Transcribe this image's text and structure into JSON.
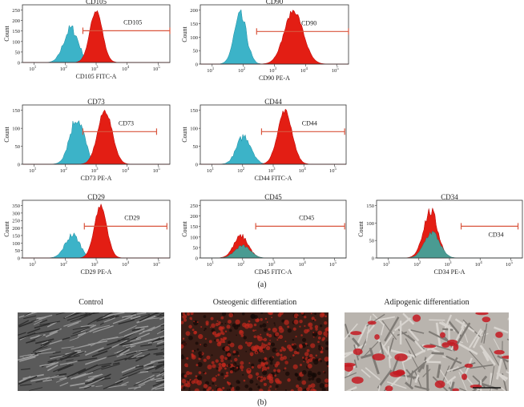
{
  "panel_a": {
    "label": "(a)",
    "plots": [
      {
        "title": "CD105",
        "x_label": "CD105 FITC-A",
        "y_label": "Count",
        "y_ticks": [
          0,
          50,
          100,
          150,
          200,
          250
        ],
        "gate": "CD105"
      },
      {
        "title": "CD90",
        "x_label": "CD90 PE-A",
        "y_label": "Count",
        "y_ticks": [
          0,
          50,
          100,
          150,
          200
        ],
        "gate": "CD90"
      },
      {
        "title": "CD73",
        "x_label": "CD73 PE-A",
        "y_label": "Count",
        "y_ticks": [
          0,
          50,
          100,
          150
        ],
        "gate": "CD73"
      },
      {
        "title": "CD44",
        "x_label": "CD44 FITC-A",
        "y_label": "Count",
        "y_ticks": [
          0,
          50,
          100,
          150
        ],
        "gate": "CD44"
      },
      {
        "title": "CD29",
        "x_label": "CD29 PE-A",
        "y_label": "Count",
        "y_ticks": [
          0,
          50,
          100,
          150,
          200,
          250,
          300,
          350
        ],
        "gate": "CD29"
      },
      {
        "title": "CD45",
        "x_label": "CD45 FITC-A",
        "y_label": "Count",
        "y_ticks": [
          0,
          50,
          100,
          150,
          200,
          250
        ],
        "gate": "CD45"
      },
      {
        "title": "CD34",
        "x_label": "CD34 PE-A",
        "y_label": "Count",
        "y_ticks": [
          0,
          50,
          100,
          150
        ],
        "gate": "CD34"
      }
    ],
    "x_tick_base": "10",
    "x_tick_exponents": [
      1,
      2,
      3,
      4,
      5
    ]
  },
  "panel_b": {
    "label": "(b)",
    "images": [
      {
        "caption": "Control"
      },
      {
        "caption": "Osteogenic differentiation"
      },
      {
        "caption": "Adipogenic differentiation"
      }
    ]
  }
}
